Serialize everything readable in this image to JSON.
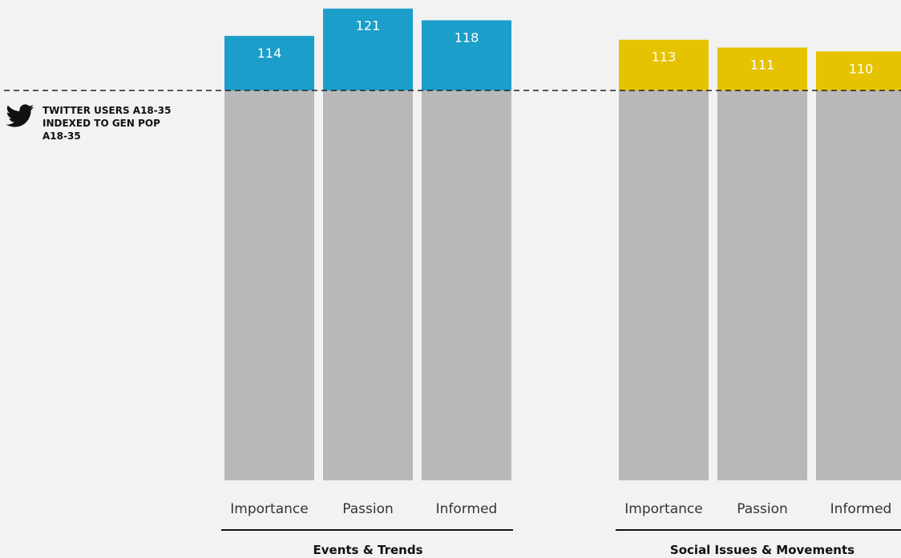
{
  "chart_data": {
    "type": "bar",
    "reference_line": {
      "value": 100,
      "label_lines": [
        "TWITTER USERS A18-35",
        "INDEXED TO GEN POP",
        "A18-35"
      ],
      "icon": "twitter-bird-icon"
    },
    "ylim": [
      0,
      121
    ],
    "grid": false,
    "colors": {
      "base": "#b8b8b8",
      "groups": [
        "#1b9ec9",
        "#e6c300"
      ]
    },
    "groups": [
      {
        "name": "Events & Trends",
        "categories": [
          "Importance",
          "Passion",
          "Informed"
        ],
        "values": [
          114,
          121,
          118
        ]
      },
      {
        "name": "Social Issues & Movements",
        "categories": [
          "Importance",
          "Passion",
          "Informed"
        ],
        "values": [
          113,
          111,
          110
        ]
      }
    ]
  }
}
